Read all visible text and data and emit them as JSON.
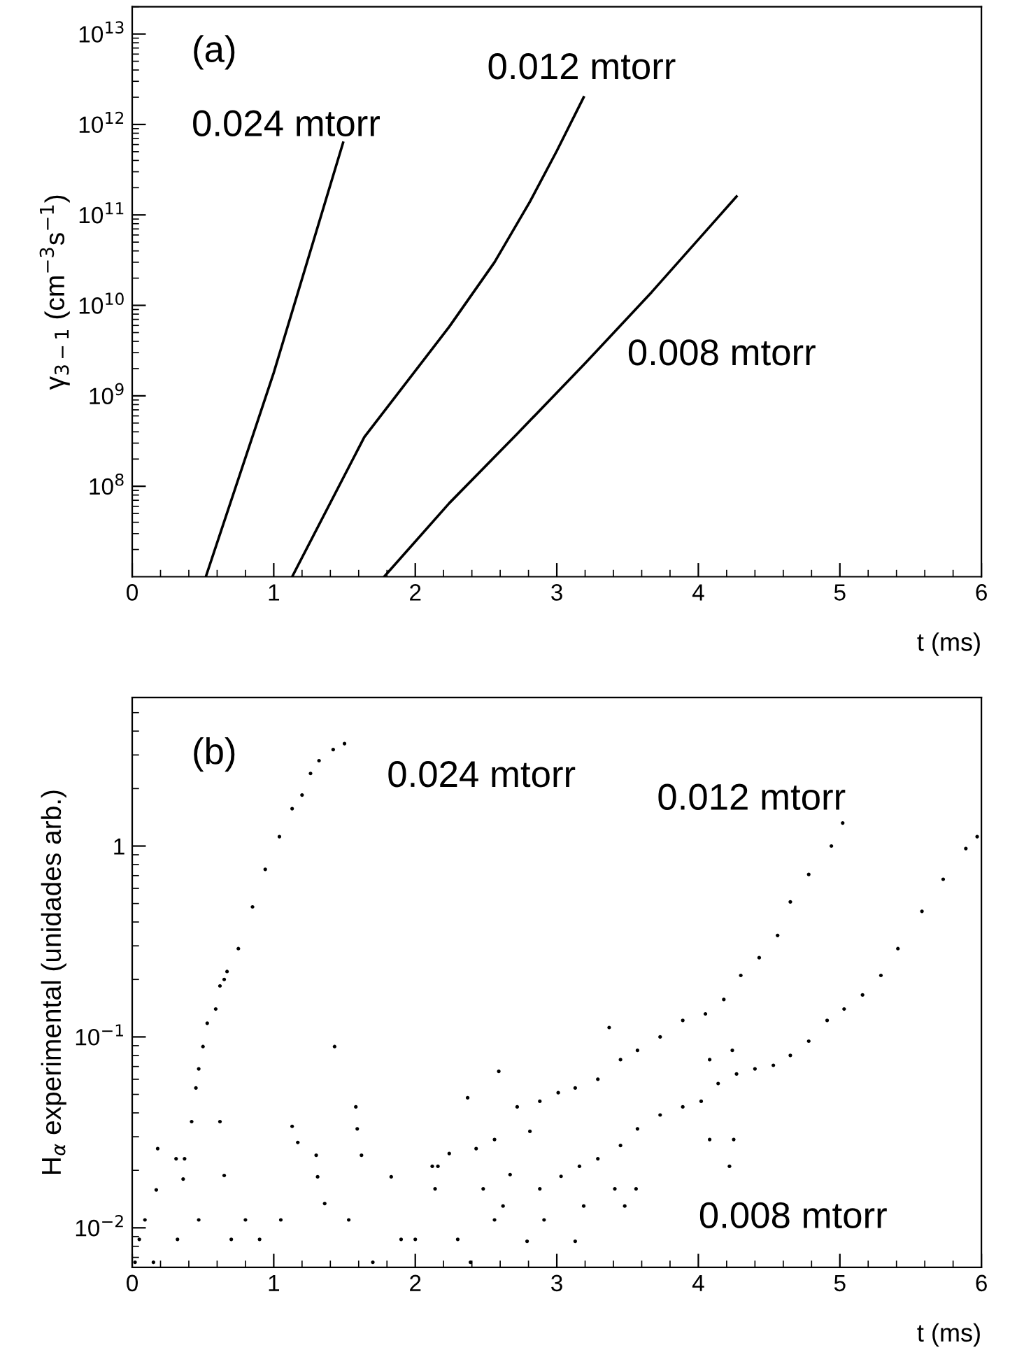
{
  "chart_data": [
    {
      "type": "line",
      "xlabel": "t (ms)",
      "ylabel": "γ$_{3−1}$ (cm$^{−3}$s$^{−1}$)",
      "annotations": [
        "(a)"
      ],
      "log": "y",
      "grid": false,
      "marker": "none",
      "line_style": "solid",
      "xlim": [
        0,
        6
      ],
      "ylim": [
        10000000.0,
        20000000000000.0
      ],
      "xticks": [
        0,
        1,
        2,
        3,
        4,
        5,
        6
      ],
      "yticks": [
        {
          "value": 100000000.0,
          "label": "10$^{8}$"
        },
        {
          "value": 1000000000.0,
          "label": "10$^{9}$"
        },
        {
          "value": 10000000000.0,
          "label": "10$^{10}$"
        },
        {
          "value": 100000000000.0,
          "label": "10$^{11}$"
        },
        {
          "value": 1000000000000.0,
          "label": "10$^{12}$"
        },
        {
          "value": 10000000000000.0,
          "label": "10$^{13}$"
        }
      ],
      "series": [
        {
          "name": "0.024 mtorr",
          "color": "#000000",
          "x": [
            0.52,
            1.0,
            1.49
          ],
          "values": [
            10000000.0,
            1800000000.0,
            630000000000.0
          ]
        },
        {
          "name": "0.012 mtorr",
          "color": "#000000",
          "x": [
            1.13,
            1.64,
            2.24,
            2.56,
            2.81,
            3.0,
            3.19
          ],
          "values": [
            10000000.0,
            350000000.0,
            5800000000.0,
            30000000000.0,
            140000000000.0,
            510000000000.0,
            2000000000000.0
          ]
        },
        {
          "name": "0.008 mtorr",
          "color": "#000000",
          "x": [
            1.78,
            2.24,
            2.72,
            3.19,
            3.67,
            4.27
          ],
          "values": [
            10000000.0,
            65000000.0,
            380000000.0,
            2200000000.0,
            14000000000.0,
            160000000000.0
          ]
        }
      ]
    },
    {
      "type": "scatter",
      "xlabel": "t (ms)",
      "ylabel": "H$_{α}$ experimental (unidades arb.)",
      "annotations": [
        "(b)"
      ],
      "log": "y",
      "grid": false,
      "marker": "circle",
      "xlim": [
        0,
        6
      ],
      "ylim": [
        0.0062,
        6
      ],
      "xticks": [
        0,
        1,
        2,
        3,
        4,
        5,
        6
      ],
      "yticks": [
        {
          "value": 0.01,
          "label": "10$^{−2}$"
        },
        {
          "value": 0.1,
          "label": "10$^{−1}$"
        },
        1
      ],
      "series": [
        {
          "name": "0.024 mtorr",
          "color": "#000000",
          "x": [
            0.02,
            0.05,
            0.09,
            0.17,
            0.18,
            0.31,
            0.32,
            0.36,
            0.37,
            0.42,
            0.45,
            0.47,
            0.5,
            0.53,
            0.59,
            0.62,
            0.65,
            0.67,
            0.75,
            0.85,
            0.94,
            1.04,
            1.13,
            1.2,
            1.26,
            1.32,
            1.42,
            1.5,
            0.15,
            0.47,
            0.62,
            0.65,
            0.8,
            0.9,
            1.05,
            1.13,
            1.17,
            1.3,
            1.31,
            1.36,
            1.43,
            0.7
          ],
          "values": [
            0.0066,
            0.0087,
            0.011,
            0.0158,
            0.026,
            0.023,
            0.0087,
            0.018,
            0.023,
            0.036,
            0.054,
            0.068,
            0.089,
            0.118,
            0.14,
            0.185,
            0.2,
            0.22,
            0.29,
            0.48,
            0.755,
            1.12,
            1.57,
            1.85,
            2.4,
            2.8,
            3.2,
            3.44,
            0.0066,
            0.011,
            0.036,
            0.0188,
            0.011,
            0.0087,
            0.011,
            0.034,
            0.028,
            0.024,
            0.0185,
            0.0134,
            0.089,
            0.0087
          ]
        },
        {
          "name": "0.012 mtorr",
          "color": "#000000",
          "x": [
            1.58,
            1.59,
            1.62,
            1.53,
            1.83,
            2.12,
            2.14,
            1.7,
            1.9,
            2.0,
            2.24,
            2.37,
            2.39,
            2.43,
            2.48,
            2.56,
            2.59,
            2.67,
            2.72,
            2.79,
            2.81,
            2.88,
            2.91,
            3.01,
            3.13,
            3.13,
            3.29,
            3.37,
            3.45,
            3.57,
            3.73,
            3.89,
            4.05,
            4.18,
            4.3,
            4.43,
            4.56,
            4.65,
            4.78,
            4.94,
            5.02,
            2.56
          ],
          "values": [
            0.043,
            0.033,
            0.024,
            0.011,
            0.0185,
            0.021,
            0.016,
            0.0066,
            0.0087,
            0.0087,
            0.0245,
            0.048,
            0.0066,
            0.026,
            0.016,
            0.029,
            0.066,
            0.019,
            0.043,
            0.0085,
            0.032,
            0.046,
            0.011,
            0.051,
            0.054,
            0.0085,
            0.06,
            0.112,
            0.076,
            0.085,
            0.1,
            0.122,
            0.132,
            0.157,
            0.21,
            0.26,
            0.34,
            0.51,
            0.71,
            1.0,
            1.32,
            0.011
          ]
        },
        {
          "name": "0.008 mtorr",
          "color": "#000000",
          "x": [
            2.16,
            2.3,
            2.62,
            2.88,
            3.03,
            3.16,
            3.19,
            3.29,
            3.41,
            3.45,
            3.48,
            3.56,
            3.57,
            3.73,
            3.89,
            4.02,
            4.08,
            4.08,
            4.14,
            4.22,
            4.24,
            4.25,
            4.27,
            4.4,
            4.53,
            4.65,
            4.78,
            4.91,
            5.03,
            5.16,
            5.29,
            5.41,
            5.58,
            5.73,
            5.89,
            5.97
          ],
          "values": [
            0.021,
            0.0087,
            0.013,
            0.016,
            0.0186,
            0.021,
            0.013,
            0.023,
            0.016,
            0.027,
            0.013,
            0.016,
            0.033,
            0.039,
            0.043,
            0.046,
            0.076,
            0.029,
            0.057,
            0.021,
            0.085,
            0.029,
            0.064,
            0.068,
            0.071,
            0.08,
            0.095,
            0.122,
            0.14,
            0.166,
            0.21,
            0.29,
            0.455,
            0.67,
            0.97,
            1.12
          ]
        }
      ]
    }
  ]
}
